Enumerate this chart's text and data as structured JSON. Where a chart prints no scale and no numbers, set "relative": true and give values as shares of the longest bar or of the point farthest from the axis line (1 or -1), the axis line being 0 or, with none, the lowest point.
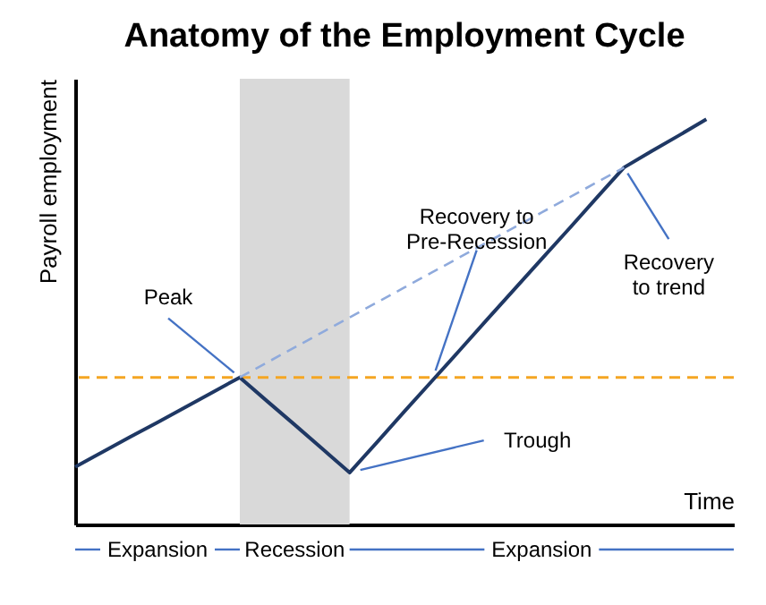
{
  "chart_data": {
    "type": "line",
    "title": "Anatomy of the Employment Cycle",
    "xlabel": "Time",
    "ylabel": "Payroll employment",
    "relative": true,
    "tick_labels": false,
    "grid": false,
    "marker": "none",
    "categories": [
      null,
      null,
      null,
      null,
      null,
      null,
      null,
      null,
      null,
      null,
      null,
      null,
      null,
      null,
      null,
      null,
      null,
      null,
      null,
      null,
      null,
      null,
      null,
      null
    ],
    "series": [
      {
        "color": "#1f3864",
        "values": [
          0.142,
          0.179,
          0.216,
          0.252,
          0.289,
          0.326,
          0.363,
          0.304,
          0.246,
          0.187,
          0.128,
          0.203,
          0.279,
          0.354,
          0.429,
          0.505,
          0.58,
          0.655,
          0.73,
          0.806,
          0.881,
          0.921,
          0.96,
          1
        ]
      },
      {
        "color": "#8faadc",
        "line_style": "dashed",
        "values": [
          null,
          null,
          null,
          null,
          null,
          null,
          0.363,
          0.4,
          0.437,
          0.474,
          0.511,
          0.548,
          0.585,
          0.622,
          0.659,
          0.696,
          0.733,
          0.77,
          0.807,
          0.844,
          0.881,
          null,
          null,
          null
        ]
      }
    ],
    "ref_lines": [
      {
        "axis": "y",
        "value": 0.363,
        "color": "#f5a623",
        "line_style": "dashed"
      }
    ],
    "annotations": [
      "Peak",
      "Recovery to\nPre-Recession",
      "Recovery\nto trend",
      "Trough",
      "Expansion",
      "Recession",
      "Expansion"
    ]
  }
}
